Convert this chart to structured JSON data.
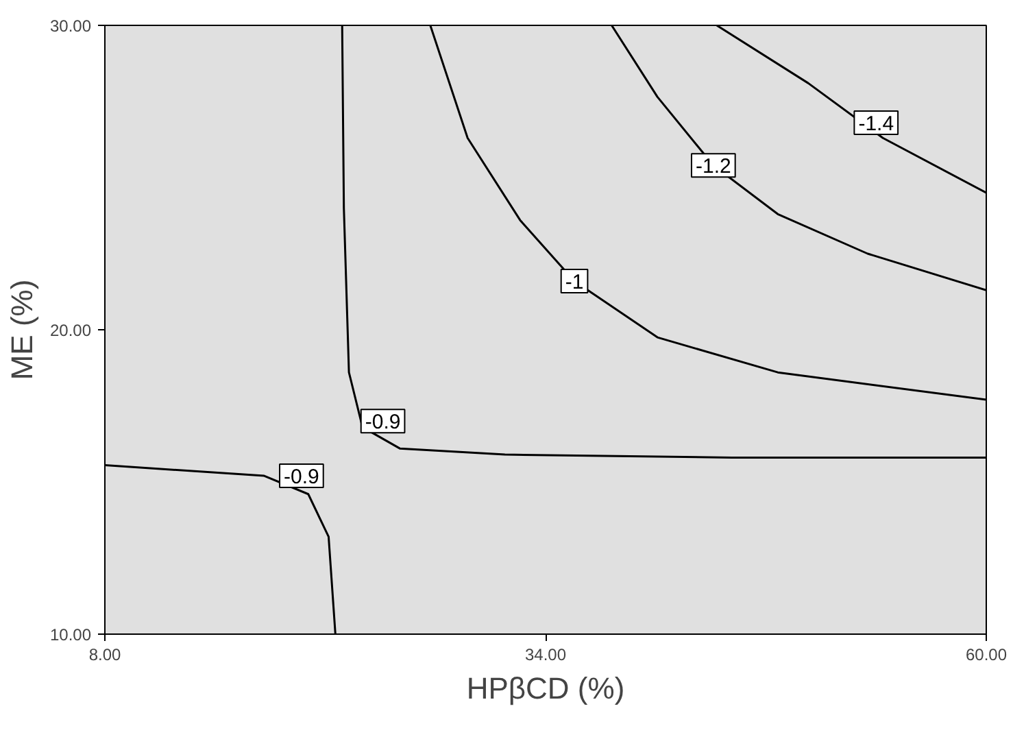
{
  "chart_data": {
    "type": "line",
    "xlabel": "HPβCD (%)",
    "ylabel": "ME (%)",
    "xlim": [
      8,
      60
    ],
    "ylim": [
      10,
      30
    ],
    "xticks": [
      {
        "value": 8,
        "label": "8.00"
      },
      {
        "value": 34,
        "label": "34.00"
      },
      {
        "value": 60,
        "label": "60.00"
      }
    ],
    "yticks": [
      {
        "value": 10,
        "label": "10.00"
      },
      {
        "value": 20,
        "label": "20.00"
      },
      {
        "value": 30,
        "label": "30.00"
      }
    ],
    "grid": false,
    "marker": "none",
    "line_style": "solid",
    "series": [
      {
        "color": "#000000",
        "x": [
          44.1,
          49.5,
          53.9,
          60
        ],
        "values": [
          30,
          28.1,
          26.3,
          24.5
        ]
      },
      {
        "color": "#000000",
        "x": [
          37.9,
          40.6,
          43.9,
          47.7,
          53.0,
          60
        ],
        "values": [
          30,
          27.65,
          25.4,
          23.8,
          22.5,
          21.3
        ]
      },
      {
        "color": "#000000",
        "x": [
          27.2,
          29.4,
          32.5,
          35.7,
          40.6,
          47.7,
          60
        ],
        "values": [
          30,
          26.3,
          23.6,
          21.6,
          19.75,
          18.6,
          17.7
        ]
      },
      {
        "color": "#000000",
        "x": [
          22.0,
          22.1,
          22.4,
          23.2,
          25.4,
          31.6,
          45.0,
          60
        ],
        "values": [
          30,
          24.0,
          18.6,
          16.8,
          16.1,
          15.9,
          15.8,
          15.8
        ]
      },
      {
        "color": "#000000",
        "x": [
          8,
          17.4,
          20.0,
          21.2,
          21.6
        ],
        "values": [
          15.55,
          15.2,
          14.6,
          13.2,
          10
        ]
      }
    ],
    "annotations": [
      {
        "text": "-1.4",
        "x": 53.5,
        "y": 26.8
      },
      {
        "text": "-1.2",
        "x": 43.9,
        "y": 25.4
      },
      {
        "text": "-1",
        "x": 35.7,
        "y": 21.6
      },
      {
        "text": "-0.9",
        "x": 24.4,
        "y": 17.0
      },
      {
        "text": "-0.9",
        "x": 19.6,
        "y": 15.2
      }
    ]
  }
}
